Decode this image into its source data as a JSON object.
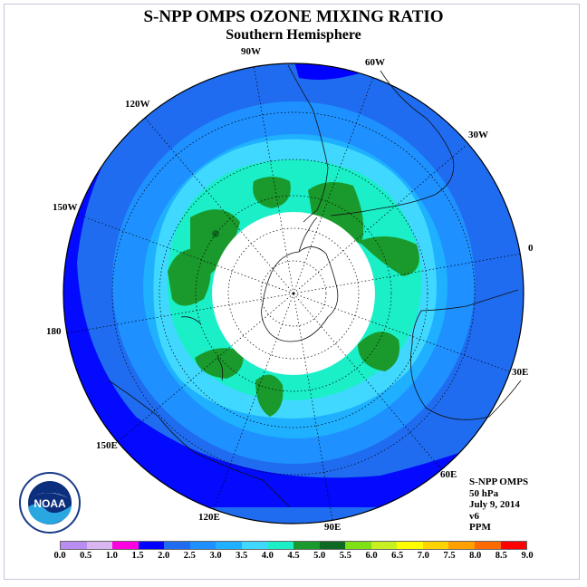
{
  "title": "S-NPP OMPS OZONE MIXING RATIO",
  "subtitle": "Southern Hemisphere",
  "lon_labels": [
    "90W",
    "60W",
    "30W",
    "0",
    "30E",
    "60E",
    "90E",
    "120E",
    "150E",
    "180",
    "150W",
    "120W"
  ],
  "info": {
    "line1": "S-NPP OMPS",
    "line2": "50 hPa",
    "line3": "July 9, 2014",
    "line4": "v6",
    "line5": "PPM"
  },
  "logo_text": "NOAA",
  "colorbar": {
    "ticks": [
      "0.0",
      "0.5",
      "1.0",
      "1.5",
      "2.0",
      "2.5",
      "3.0",
      "3.5",
      "4.0",
      "4.5",
      "5.0",
      "5.5",
      "6.0",
      "6.5",
      "7.0",
      "7.5",
      "8.0",
      "8.5",
      "9.0"
    ],
    "colors": [
      "#b88cf0",
      "#d9b6f2",
      "#ff00e0",
      "#0000ff",
      "#1f6cf0",
      "#1e90ff",
      "#1fb0ff",
      "#40d8ff",
      "#1aefc8",
      "#1a9a2c",
      "#0e6a22",
      "#7fe016",
      "#c8f020",
      "#ffff00",
      "#ffd400",
      "#ffa000",
      "#ff6a00",
      "#ff0000",
      "#8b5a2b"
    ]
  }
}
